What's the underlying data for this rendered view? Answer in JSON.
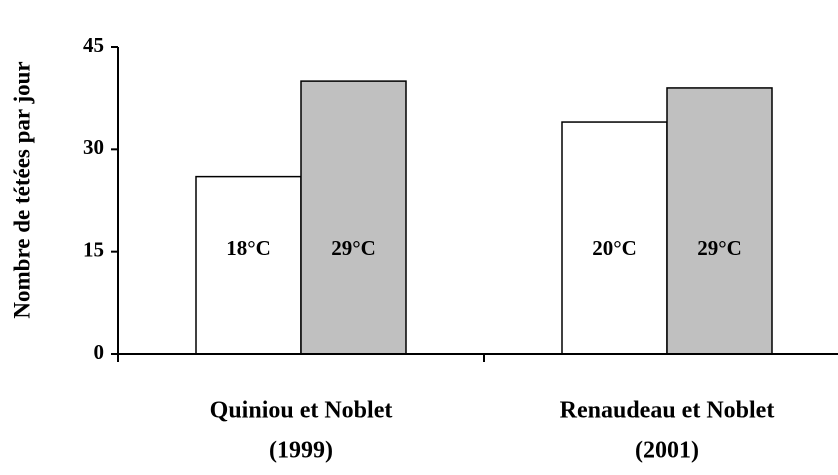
{
  "chart_data": {
    "type": "bar",
    "y_label": "Nombre de tétées par jour",
    "categories": [
      [
        "Quiniou et Noblet",
        "(1999)"
      ],
      [
        "Renaudeau et Noblet",
        "(2001)"
      ]
    ],
    "series": [
      {
        "color": "#ffffff",
        "labels": [
          "18°C",
          "20°C"
        ],
        "values": [
          26,
          34
        ]
      },
      {
        "color": "#c0c0c0",
        "labels": [
          "29°C",
          "29°C"
        ],
        "values": [
          40,
          39
        ]
      }
    ],
    "ylim": [
      0,
      45
    ],
    "yticks": [
      0,
      15,
      30,
      45
    ]
  }
}
